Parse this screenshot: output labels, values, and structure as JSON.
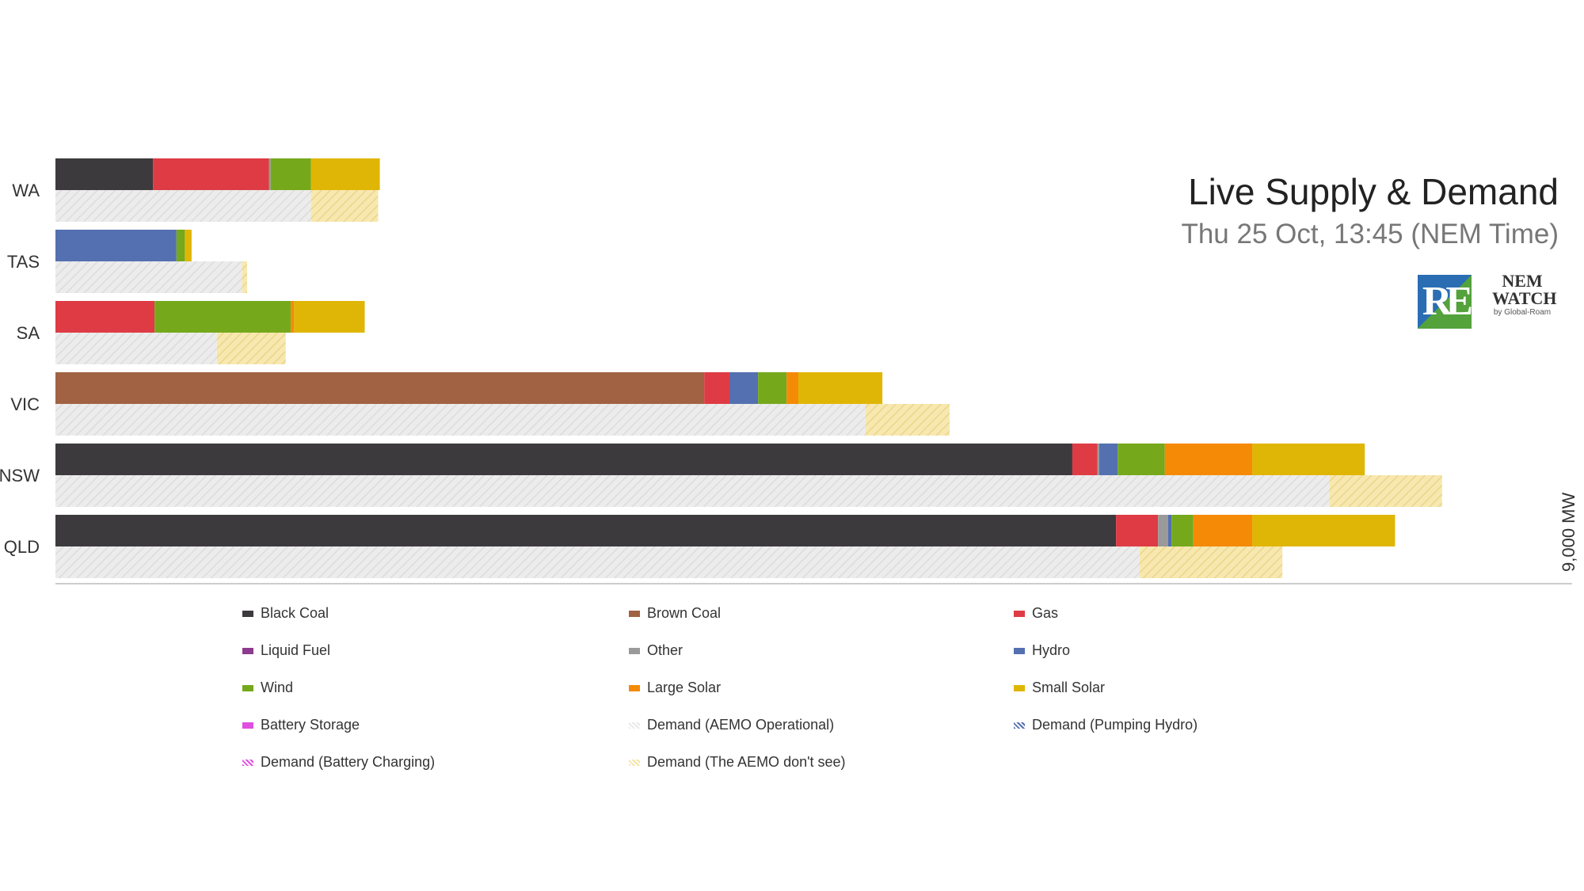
{
  "chart_data": {
    "type": "bar",
    "orientation": "horizontal",
    "stacked": true,
    "title": "Live Supply & Demand",
    "subtitle": "Thu 25 Oct, 13:45 (NEM Time)",
    "x_axis_label": "9,000 MW",
    "xlim": [
      0,
      9000
    ],
    "categories": [
      "WA",
      "TAS",
      "SA",
      "VIC",
      "NSW",
      "QLD"
    ],
    "supply_series": [
      {
        "name": "Black Coal",
        "color": "#3d3a3e",
        "values": [
          580,
          0,
          0,
          0,
          6050,
          6310
        ]
      },
      {
        "name": "Brown Coal",
        "color": "#a16243",
        "values": [
          0,
          0,
          0,
          3860,
          0,
          0
        ]
      },
      {
        "name": "Gas",
        "color": "#de3b45",
        "values": [
          690,
          0,
          590,
          150,
          150,
          250
        ]
      },
      {
        "name": "Liquid Fuel",
        "color": "#8e3a8e",
        "values": [
          0,
          0,
          0,
          0,
          0,
          0
        ]
      },
      {
        "name": "Other",
        "color": "#9a9a9a",
        "values": [
          10,
          0,
          0,
          0,
          10,
          60
        ]
      },
      {
        "name": "Hydro",
        "color": "#5470b0",
        "values": [
          0,
          720,
          0,
          170,
          110,
          20
        ]
      },
      {
        "name": "Wind",
        "color": "#75a91b",
        "values": [
          240,
          50,
          810,
          170,
          280,
          130
        ]
      },
      {
        "name": "Large Solar",
        "color": "#f58a07",
        "values": [
          0,
          0,
          20,
          70,
          520,
          350
        ]
      },
      {
        "name": "Small Solar",
        "color": "#e0b606",
        "values": [
          410,
          40,
          420,
          500,
          670,
          850
        ]
      },
      {
        "name": "Battery Storage",
        "color": "#e04fe0",
        "values": [
          0,
          0,
          0,
          0,
          0,
          0
        ]
      }
    ],
    "demand_series": [
      {
        "name": "Demand (AEMO Operational)",
        "color": "#e8e8e8",
        "values": [
          1520,
          1110,
          960,
          4820,
          7580,
          6450
        ]
      },
      {
        "name": "Demand (The AEMO don't see)",
        "color": "#f5e3a3",
        "values": [
          400,
          30,
          410,
          500,
          670,
          850
        ]
      },
      {
        "name": "Demand (Pumping Hydro)",
        "color": "#5470b0",
        "values": [
          0,
          0,
          0,
          0,
          0,
          0
        ]
      },
      {
        "name": "Demand (Battery Charging)",
        "color": "#e04fe0",
        "values": [
          0,
          0,
          0,
          0,
          0,
          0
        ]
      }
    ],
    "legend": [
      {
        "name": "Black Coal",
        "color": "#3d3a3e",
        "hatched": false
      },
      {
        "name": "Brown Coal",
        "color": "#a16243",
        "hatched": false
      },
      {
        "name": "Gas",
        "color": "#de3b45",
        "hatched": false
      },
      {
        "name": "Liquid Fuel",
        "color": "#8e3a8e",
        "hatched": false
      },
      {
        "name": "Other",
        "color": "#9a9a9a",
        "hatched": false
      },
      {
        "name": "Hydro",
        "color": "#5470b0",
        "hatched": false
      },
      {
        "name": "Wind",
        "color": "#75a91b",
        "hatched": false
      },
      {
        "name": "Large Solar",
        "color": "#f58a07",
        "hatched": false
      },
      {
        "name": "Small Solar",
        "color": "#e0b606",
        "hatched": false
      },
      {
        "name": "Battery Storage",
        "color": "#e04fe0",
        "hatched": false
      },
      {
        "name": "Demand (AEMO Operational)",
        "color": "#e8e8e8",
        "hatched": true
      },
      {
        "name": "Demand (Pumping Hydro)",
        "color": "#5470b0",
        "hatched": true
      },
      {
        "name": "Demand (Battery Charging)",
        "color": "#e04fe0",
        "hatched": true
      },
      {
        "name": "Demand (The AEMO don't see)",
        "color": "#f5e3a3",
        "hatched": true
      }
    ],
    "legend_placement": "bottom"
  },
  "logos": {
    "re_text": "RE",
    "nem_line1": "NEM",
    "nem_line2": "WATCH",
    "nem_line3": "by Global-Roam"
  }
}
